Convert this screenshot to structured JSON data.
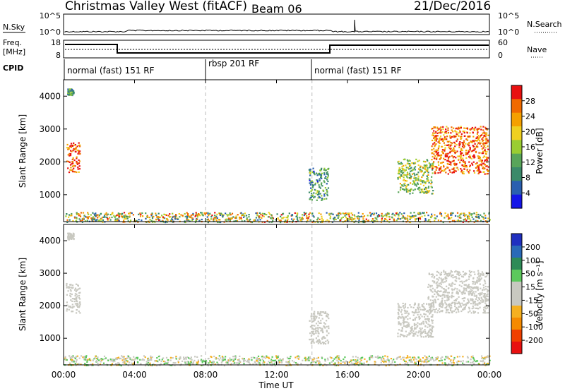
{
  "header": {
    "station": "Christmas Valley West (fitACF)",
    "beam": "Beam 06",
    "date": "21/Dec/2016"
  },
  "strips": {
    "nsky_label": "N.Sky",
    "nsky_ticks": [
      "10^5",
      "10^0"
    ],
    "nsearch_label": "N.Search",
    "nsearch_ticks": [
      "10^5",
      "10^0"
    ],
    "freq_label": "Freq.",
    "freq_unit": "[MHz]",
    "freq_ticks": [
      "18",
      "8"
    ],
    "nave_label": "Nave",
    "nave_ticks": [
      "60",
      "0"
    ],
    "cpid_label": "CPID",
    "cpid_segments": [
      "normal (fast) 151 RF",
      "rbsp 201 RF",
      "normal (fast) 151 RF"
    ]
  },
  "chart_data": [
    {
      "type": "heatmap",
      "name": "power",
      "ylabel": "Slant Range [km]",
      "yticks": [
        "1000",
        "2000",
        "3000",
        "4000"
      ],
      "ylim": [
        180,
        4500
      ],
      "xlim": [
        0,
        24
      ],
      "colorbar_label": "Power [dB]",
      "colorbar_ticks": [
        "4",
        "8",
        "12",
        "16",
        "20",
        "24",
        "28"
      ],
      "colorbar_colors": [
        "#1515e8",
        "#2a5fb0",
        "#3a8a6a",
        "#58a55a",
        "#9acd32",
        "#f0d020",
        "#f5a000",
        "#f06a00",
        "#e81010"
      ],
      "regions": [
        {
          "t0": 0.15,
          "t1": 0.9,
          "r0": 1700,
          "r1": 2600,
          "value": 26
        },
        {
          "t0": 0.2,
          "t1": 0.55,
          "r0": 4050,
          "r1": 4250,
          "value": 10
        },
        {
          "t0": 13.8,
          "t1": 14.9,
          "r0": 850,
          "r1": 1850,
          "value": 10
        },
        {
          "t0": 18.8,
          "t1": 20.8,
          "r0": 1050,
          "r1": 2100,
          "value": 14
        },
        {
          "t0": 20.7,
          "t1": 23.9,
          "r0": 1650,
          "r1": 3100,
          "value": 25
        },
        {
          "t0": 0.0,
          "t1": 24.0,
          "r0": 180,
          "r1": 480,
          "value": 12
        }
      ]
    },
    {
      "type": "heatmap",
      "name": "velocity",
      "xlabel": "Time UT",
      "ylabel": "Slant Range [km]",
      "yticks": [
        "1000",
        "2000",
        "3000",
        "4000"
      ],
      "ylim": [
        180,
        4500
      ],
      "xlim": [
        0,
        24
      ],
      "xticks": [
        "00:00",
        "04:00",
        "08:00",
        "12:00",
        "16:00",
        "20:00",
        "00:00"
      ],
      "colorbar_label": "Velocity [m s⁻¹]",
      "colorbar_ticks": [
        "200",
        "100",
        "50",
        "15",
        "-15",
        "-50",
        "-100",
        "-200"
      ],
      "colorbar_colors": [
        "#2030c0",
        "#2a6ab8",
        "#2e8b57",
        "#5cc85c",
        "#c8c8c0",
        "#c8c8c0",
        "#f5b020",
        "#f58a00",
        "#f04000",
        "#e81010"
      ],
      "regions": [
        {
          "t0": 0.1,
          "t1": 0.9,
          "r0": 1800,
          "r1": 2700,
          "value": 0
        },
        {
          "t0": 0.2,
          "t1": 0.55,
          "r0": 4050,
          "r1": 4250,
          "value": 0
        },
        {
          "t0": 13.8,
          "t1": 14.9,
          "r0": 850,
          "r1": 1850,
          "value": 0
        },
        {
          "t0": 18.8,
          "t1": 20.8,
          "r0": 1050,
          "r1": 2100,
          "value": 0
        },
        {
          "t0": 20.5,
          "t1": 23.9,
          "r0": 1800,
          "r1": 3100,
          "value": 0
        },
        {
          "t0": 0.0,
          "t1": 24.0,
          "r0": 180,
          "r1": 480,
          "value": 30
        }
      ]
    }
  ]
}
